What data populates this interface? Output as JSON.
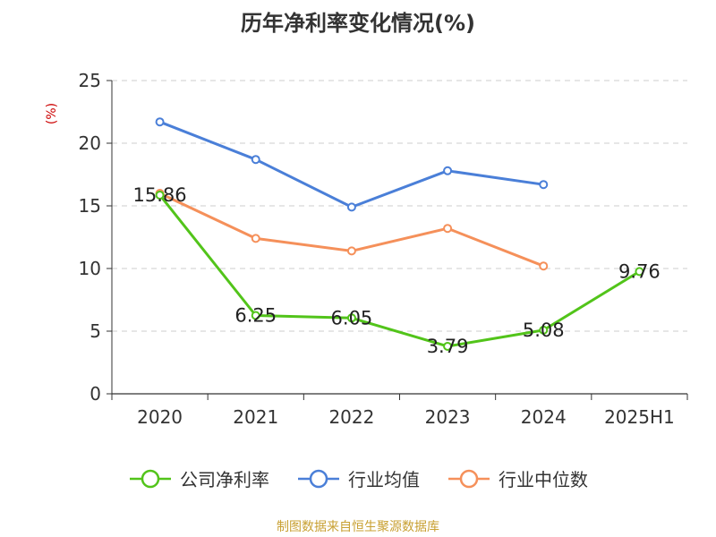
{
  "chart_data": {
    "type": "line",
    "title": "历年净利率变化情况(%)",
    "ylabel": "(%)",
    "categories": [
      "2020",
      "2021",
      "2022",
      "2023",
      "2024",
      "2025H1"
    ],
    "ylim": [
      0,
      25
    ],
    "yticks": [
      "0",
      "5",
      "10",
      "15",
      "20",
      "25"
    ],
    "grid": true,
    "legend_position": "bottom",
    "series": [
      {
        "name": "公司净利率",
        "color": "#52c41a",
        "values": [
          15.86,
          6.25,
          6.05,
          3.79,
          5.08,
          9.76
        ],
        "labels": [
          "15.86",
          "6.25",
          "6.05",
          "3.79",
          "5.08",
          "9.76"
        ]
      },
      {
        "name": "行业均值",
        "color": "#4a7fd8",
        "values": [
          21.7,
          18.7,
          14.9,
          17.8,
          16.7,
          null
        ]
      },
      {
        "name": "行业中位数",
        "color": "#f5905a",
        "values": [
          16.0,
          12.4,
          11.4,
          13.2,
          10.2,
          null
        ]
      }
    ]
  },
  "source": "制图数据来自恒生聚源数据库"
}
